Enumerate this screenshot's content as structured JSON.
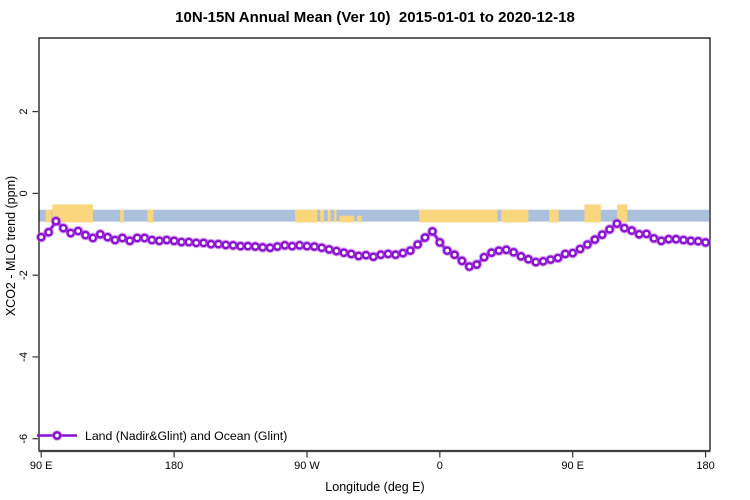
{
  "chart_data": {
    "type": "line",
    "title": "10N-15N Annual Mean (Ver 10)  2015-01-01 to 2020-12-18",
    "xlabel": "Longitude (deg E)",
    "ylabel": "XCO2 - MLO trend (ppm)",
    "x_range": [
      88.5,
      543
    ],
    "y_range": [
      -6.3,
      3.8
    ],
    "grid": false,
    "x_ticks": [
      {
        "value": 90,
        "label": "90 E"
      },
      {
        "value": 180,
        "label": "180"
      },
      {
        "value": 270,
        "label": "90 W"
      },
      {
        "value": 360,
        "label": "0"
      },
      {
        "value": 450,
        "label": "90 E"
      },
      {
        "value": 540,
        "label": "180"
      }
    ],
    "y_ticks": [
      {
        "value": 2,
        "label": "2"
      },
      {
        "value": 0,
        "label": "0"
      },
      {
        "value": -2,
        "label": "-2"
      },
      {
        "value": -4,
        "label": "-4"
      },
      {
        "value": -6,
        "label": "-6"
      }
    ],
    "legend": {
      "label": "Land (Nadir&Glint) and Ocean (Glint)",
      "position": "bottom-left"
    },
    "axis_color": "#000000",
    "baseline_color": "#3f3f3f",
    "tick_color": "#333333",
    "series": [
      {
        "name": "Land (Nadir&Glint) and Ocean (Glint)",
        "color": "#8a0fd0",
        "halo_color": "#b55ce8",
        "marker": "open-circle",
        "x_start": 90,
        "x_step": 5,
        "values": [
          -1.07,
          -0.95,
          -0.68,
          -0.85,
          -0.97,
          -0.92,
          -1.02,
          -1.09,
          -1.0,
          -1.07,
          -1.14,
          -1.09,
          -1.16,
          -1.09,
          -1.09,
          -1.14,
          -1.16,
          -1.14,
          -1.16,
          -1.19,
          -1.19,
          -1.21,
          -1.21,
          -1.24,
          -1.24,
          -1.26,
          -1.27,
          -1.29,
          -1.29,
          -1.3,
          -1.32,
          -1.33,
          -1.3,
          -1.27,
          -1.29,
          -1.27,
          -1.29,
          -1.3,
          -1.33,
          -1.37,
          -1.41,
          -1.45,
          -1.48,
          -1.53,
          -1.51,
          -1.55,
          -1.5,
          -1.48,
          -1.5,
          -1.46,
          -1.4,
          -1.25,
          -1.08,
          -0.93,
          -1.2,
          -1.4,
          -1.5,
          -1.65,
          -1.79,
          -1.74,
          -1.56,
          -1.45,
          -1.4,
          -1.38,
          -1.44,
          -1.54,
          -1.61,
          -1.68,
          -1.66,
          -1.62,
          -1.58,
          -1.48,
          -1.46,
          -1.36,
          -1.25,
          -1.13,
          -1.01,
          -0.88,
          -0.74,
          -0.85,
          -0.91,
          -1.0,
          -0.99,
          -1.1,
          -1.16,
          -1.12,
          -1.12,
          -1.14,
          -1.16,
          -1.17,
          -1.2
        ]
      }
    ],
    "map_strip": {
      "description": "land-ocean strip for latitude band 10N-15N",
      "ocean_color": "#abc0dd",
      "land_color": "#fad67c",
      "ppm_top": -0.4,
      "ppm_bottom": -0.69,
      "tall_ppm_top": -0.27,
      "land_patches": [
        {
          "from": 93,
          "to": 97,
          "tall": false
        },
        {
          "from": 97.5,
          "to": 125,
          "tall": true
        },
        {
          "from": 143.5,
          "to": 146,
          "tall": false
        },
        {
          "from": 162,
          "to": 166,
          "tall": false
        },
        {
          "from": 262,
          "to": 277,
          "tall": false
        },
        {
          "from": 279,
          "to": 281.5,
          "tall": false
        },
        {
          "from": 284,
          "to": 286,
          "tall": false
        },
        {
          "from": 288.5,
          "to": 290,
          "tall": false
        },
        {
          "from": 292,
          "to": 302,
          "tall": false,
          "low": true
        },
        {
          "from": 304,
          "to": 307,
          "tall": false,
          "low": true
        },
        {
          "from": 346,
          "to": 399,
          "tall": false
        },
        {
          "from": 401.5,
          "to": 420,
          "tall": false
        },
        {
          "from": 434,
          "to": 440.5,
          "tall": false
        },
        {
          "from": 458,
          "to": 469,
          "tall": true
        },
        {
          "from": 480,
          "to": 487,
          "tall": true
        }
      ]
    }
  }
}
